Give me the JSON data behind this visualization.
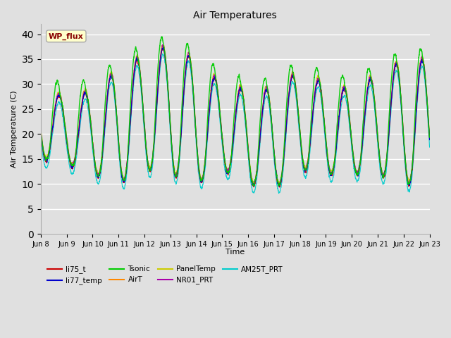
{
  "title": "Air Temperatures",
  "ylabel": "Air Temperature (C)",
  "xlabel": "Time",
  "ylim": [
    0,
    42
  ],
  "yticks": [
    0,
    5,
    10,
    15,
    20,
    25,
    30,
    35,
    40
  ],
  "series": [
    {
      "name": "li75_t",
      "color": "#cc0000"
    },
    {
      "name": "li77_temp",
      "color": "#0000cc"
    },
    {
      "name": "Tsonic",
      "color": "#00cc00"
    },
    {
      "name": "AirT",
      "color": "#ff8800"
    },
    {
      "name": "PanelTemp",
      "color": "#cccc00"
    },
    {
      "name": "NR01_PRT",
      "color": "#aa00aa"
    },
    {
      "name": "AM25T_PRT",
      "color": "#00cccc"
    }
  ],
  "annotation_text": "WP_flux",
  "figsize": [
    6.4,
    4.8
  ],
  "dpi": 100,
  "bg_color": "#e0e0e0",
  "grid_color": "#ffffff",
  "x_tick_labels": [
    "Jun 8",
    "Jun 9",
    "Jun 10",
    "Jun 11",
    "Jun 12",
    "Jun 13",
    "Jun 14",
    "Jun 15",
    "Jun 16",
    "Jun 17",
    "Jun 18",
    "Jun 19",
    "Jun 20",
    "Jun 21",
    "Jun 22",
    "Jun 23"
  ],
  "legend_order": [
    "li75_t",
    "li77_temp",
    "Tsonic",
    "AirT",
    "PanelTemp",
    "NR01_PRT",
    "AM25T_PRT"
  ]
}
